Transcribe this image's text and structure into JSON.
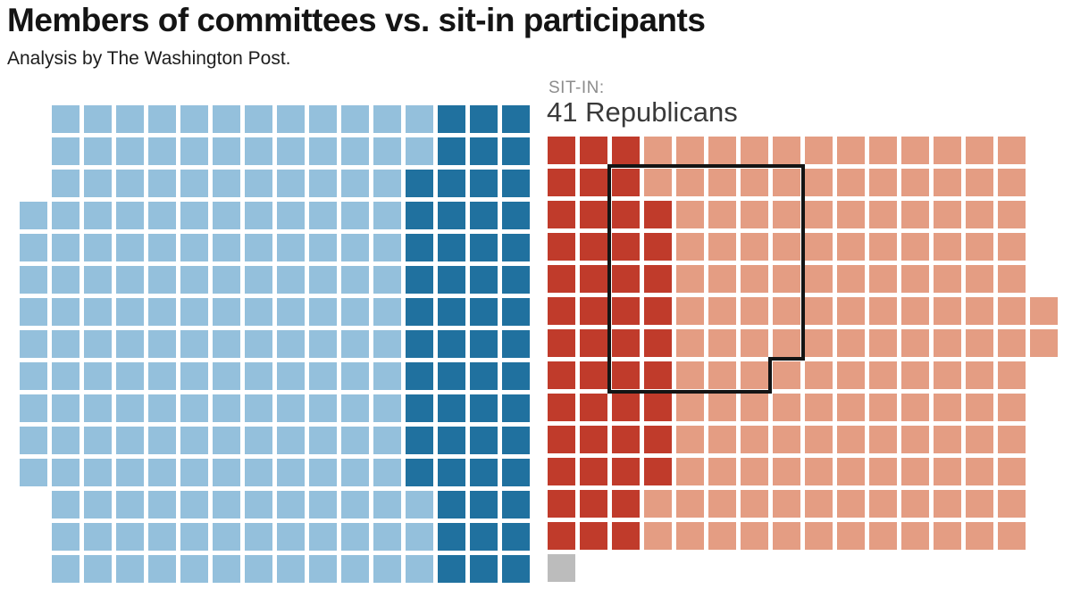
{
  "header": {
    "title": "Members of committees vs. sit-in participants",
    "subtitle": "Analysis by The Washington Post."
  },
  "sit_in_label": {
    "kicker": "SIT-IN:",
    "value": "41 Republicans"
  },
  "colors": {
    "dem_light": "#94c0dc",
    "dem_dark": "#20719f",
    "rep_light": "#e49d83",
    "rep_dark": "#c03b2b",
    "gray": "#bcbcbc",
    "outline": "#141414",
    "title_text": "#141414",
    "kicker_text": "#8c8c8c"
  },
  "chart_data": {
    "type": "waffle",
    "title": "Members of committees vs. sit-in participants",
    "subtitle": "Analysis by The Washington Post.",
    "annotation": {
      "kicker": "SIT-IN:",
      "value": "41 Republicans",
      "outlined_square_count": 41
    },
    "grids": [
      {
        "id": "democrats",
        "description": "Left waffle grid: light blue squares with dark blue block at right edge",
        "light_color_key": "dem_light",
        "dark_color_key": "dem_dark",
        "rows": [
          {
            "cols": [
              2,
              16
            ],
            "dark": [
              14,
              16
            ]
          },
          {
            "cols": [
              2,
              16
            ],
            "dark": [
              14,
              16
            ]
          },
          {
            "cols": [
              2,
              16
            ],
            "dark": [
              13,
              16
            ]
          },
          {
            "cols": [
              1,
              16
            ],
            "dark": [
              13,
              16
            ]
          },
          {
            "cols": [
              1,
              16
            ],
            "dark": [
              13,
              16
            ]
          },
          {
            "cols": [
              1,
              16
            ],
            "dark": [
              13,
              16
            ]
          },
          {
            "cols": [
              1,
              16
            ],
            "dark": [
              13,
              16
            ]
          },
          {
            "cols": [
              1,
              16
            ],
            "dark": [
              13,
              16
            ]
          },
          {
            "cols": [
              1,
              16
            ],
            "dark": [
              13,
              16
            ]
          },
          {
            "cols": [
              1,
              16
            ],
            "dark": [
              13,
              16
            ]
          },
          {
            "cols": [
              1,
              16
            ],
            "dark": [
              13,
              16
            ]
          },
          {
            "cols": [
              1,
              16
            ],
            "dark": [
              13,
              16
            ]
          },
          {
            "cols": [
              2,
              16
            ],
            "dark": [
              14,
              16
            ]
          },
          {
            "cols": [
              2,
              16
            ],
            "dark": [
              14,
              16
            ]
          },
          {
            "cols": [
              2,
              16
            ],
            "dark": [
              14,
              16
            ]
          }
        ],
        "totals": {
          "total_squares": 234,
          "dark_squares": 55,
          "light_squares": 179
        }
      },
      {
        "id": "republicans",
        "description": "Right waffle grid: light salmon squares with dark red block at left edge, black outline around 41 squares, one gray square at bottom left",
        "light_color_key": "rep_light",
        "dark_color_key": "rep_dark",
        "rows": [
          {
            "cols": [
              1,
              15
            ],
            "dark": [
              1,
              3
            ]
          },
          {
            "cols": [
              1,
              15
            ],
            "dark": [
              1,
              3
            ]
          },
          {
            "cols": [
              1,
              15
            ],
            "dark": [
              1,
              4
            ]
          },
          {
            "cols": [
              1,
              15
            ],
            "dark": [
              1,
              4
            ]
          },
          {
            "cols": [
              1,
              15
            ],
            "dark": [
              1,
              4
            ]
          },
          {
            "cols": [
              1,
              15
            ],
            "dark": [
              1,
              4
            ]
          },
          {
            "cols": [
              1,
              15
            ],
            "dark": [
              1,
              4
            ]
          },
          {
            "cols": [
              1,
              15
            ],
            "dark": [
              1,
              4
            ]
          },
          {
            "cols": [
              1,
              15
            ],
            "dark": [
              1,
              4
            ]
          },
          {
            "cols": [
              1,
              15
            ],
            "dark": [
              1,
              4
            ]
          },
          {
            "cols": [
              1,
              15
            ],
            "dark": [
              1,
              4
            ]
          },
          {
            "cols": [
              1,
              15
            ],
            "dark": [
              1,
              3
            ]
          },
          {
            "cols": [
              1,
              15
            ],
            "dark": [
              1,
              3
            ]
          }
        ],
        "extra_light_cells": [
          {
            "row": 6,
            "col": 16
          },
          {
            "row": 7,
            "col": 16
          }
        ],
        "gray_cells": [
          {
            "row": 14,
            "col": 1
          }
        ],
        "outline": {
          "row_start": 2,
          "row_end": 8,
          "col_start": 3,
          "col_end": 8,
          "notch_excluded_cell": {
            "row": 8,
            "col": 8
          },
          "enclosed_count": 41
        },
        "totals": {
          "total_red_squares": 197,
          "dark_squares": 48,
          "light_squares": 149,
          "gray_squares": 1
        }
      }
    ]
  }
}
